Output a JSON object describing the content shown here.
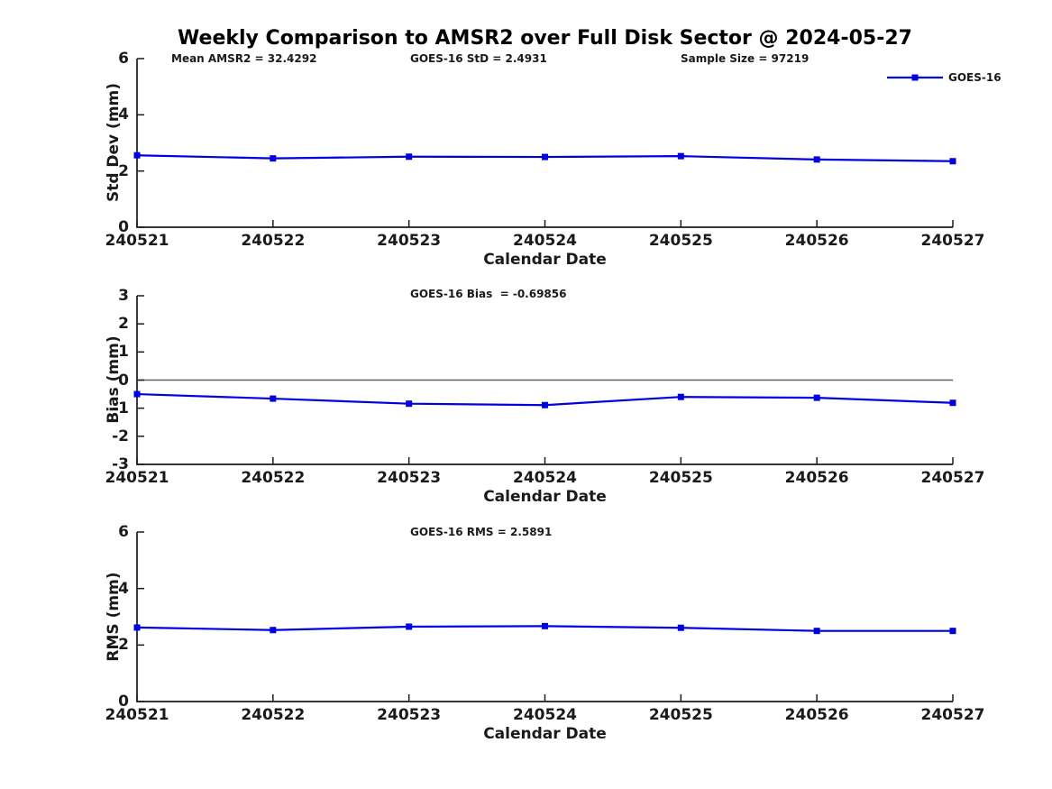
{
  "title": "Weekly Comparison to AMSR2 over Full Disk Sector @ 2024-05-27",
  "legend": {
    "label": "GOES-16"
  },
  "colors": {
    "series": "#0000e0",
    "zero_line": "#606060",
    "axis": "#1a1a1a",
    "text": "#1a1a1a",
    "title": "#000000"
  },
  "chart_data": [
    {
      "type": "line",
      "name": "std-dev-panel",
      "annotations": [
        "Mean AMSR2 = 32.4292",
        "GOES-16 StD = 2.4931",
        "Sample Size = 97219"
      ],
      "ylabel": "Std Dev (mm)",
      "xlabel": "Calendar Date",
      "ylim": [
        0,
        6
      ],
      "yticks": [
        0,
        2,
        4,
        6
      ],
      "categories": [
        "240521",
        "240522",
        "240523",
        "240524",
        "240525",
        "240526",
        "240527"
      ],
      "series": [
        {
          "name": "GOES-16",
          "values": [
            2.56,
            2.45,
            2.51,
            2.5,
            2.53,
            2.41,
            2.35
          ]
        }
      ],
      "legend_position": "top-right",
      "grid": false
    },
    {
      "type": "line",
      "name": "bias-panel",
      "annotation": "GOES-16 Bias  = -0.69856",
      "ylabel": "Bias (mm)",
      "xlabel": "Calendar Date",
      "ylim": [
        -3,
        3
      ],
      "yticks": [
        -3,
        -2,
        -1,
        0,
        1,
        2,
        3
      ],
      "zero_line": true,
      "categories": [
        "240521",
        "240522",
        "240523",
        "240524",
        "240525",
        "240526",
        "240527"
      ],
      "series": [
        {
          "name": "GOES-16",
          "values": [
            -0.5,
            -0.66,
            -0.84,
            -0.89,
            -0.6,
            -0.63,
            -0.81
          ]
        }
      ],
      "grid": false
    },
    {
      "type": "line",
      "name": "rms-panel",
      "annotation": "GOES-16 RMS = 2.5891",
      "ylabel": "RMS (mm)",
      "xlabel": "Calendar Date",
      "ylim": [
        0,
        6
      ],
      "yticks": [
        0,
        2,
        4,
        6
      ],
      "categories": [
        "240521",
        "240522",
        "240523",
        "240524",
        "240525",
        "240526",
        "240527"
      ],
      "series": [
        {
          "name": "GOES-16",
          "values": [
            2.62,
            2.53,
            2.65,
            2.67,
            2.61,
            2.5,
            2.5
          ]
        }
      ],
      "grid": false
    }
  ]
}
